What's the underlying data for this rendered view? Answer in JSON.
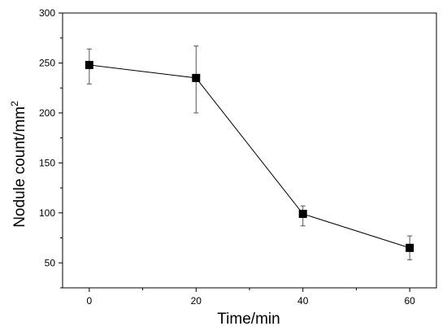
{
  "chart_data": {
    "type": "line",
    "xlabel": "Time/min",
    "ylabel": "Nodule count/mm",
    "ylabel_superscript": "2",
    "xlim": [
      -5,
      65
    ],
    "ylim": [
      25,
      300
    ],
    "x_ticks": [
      0,
      20,
      40,
      60
    ],
    "y_ticks": [
      50,
      100,
      150,
      200,
      250,
      300
    ],
    "grid": false,
    "legend": "none",
    "series": [
      {
        "marker": "square",
        "color": "#000000",
        "x": [
          0,
          20,
          40,
          60
        ],
        "y": [
          248,
          235,
          99,
          65
        ],
        "err_low": [
          19,
          35,
          12,
          12
        ],
        "err_high": [
          16,
          32,
          8,
          12
        ]
      }
    ]
  }
}
